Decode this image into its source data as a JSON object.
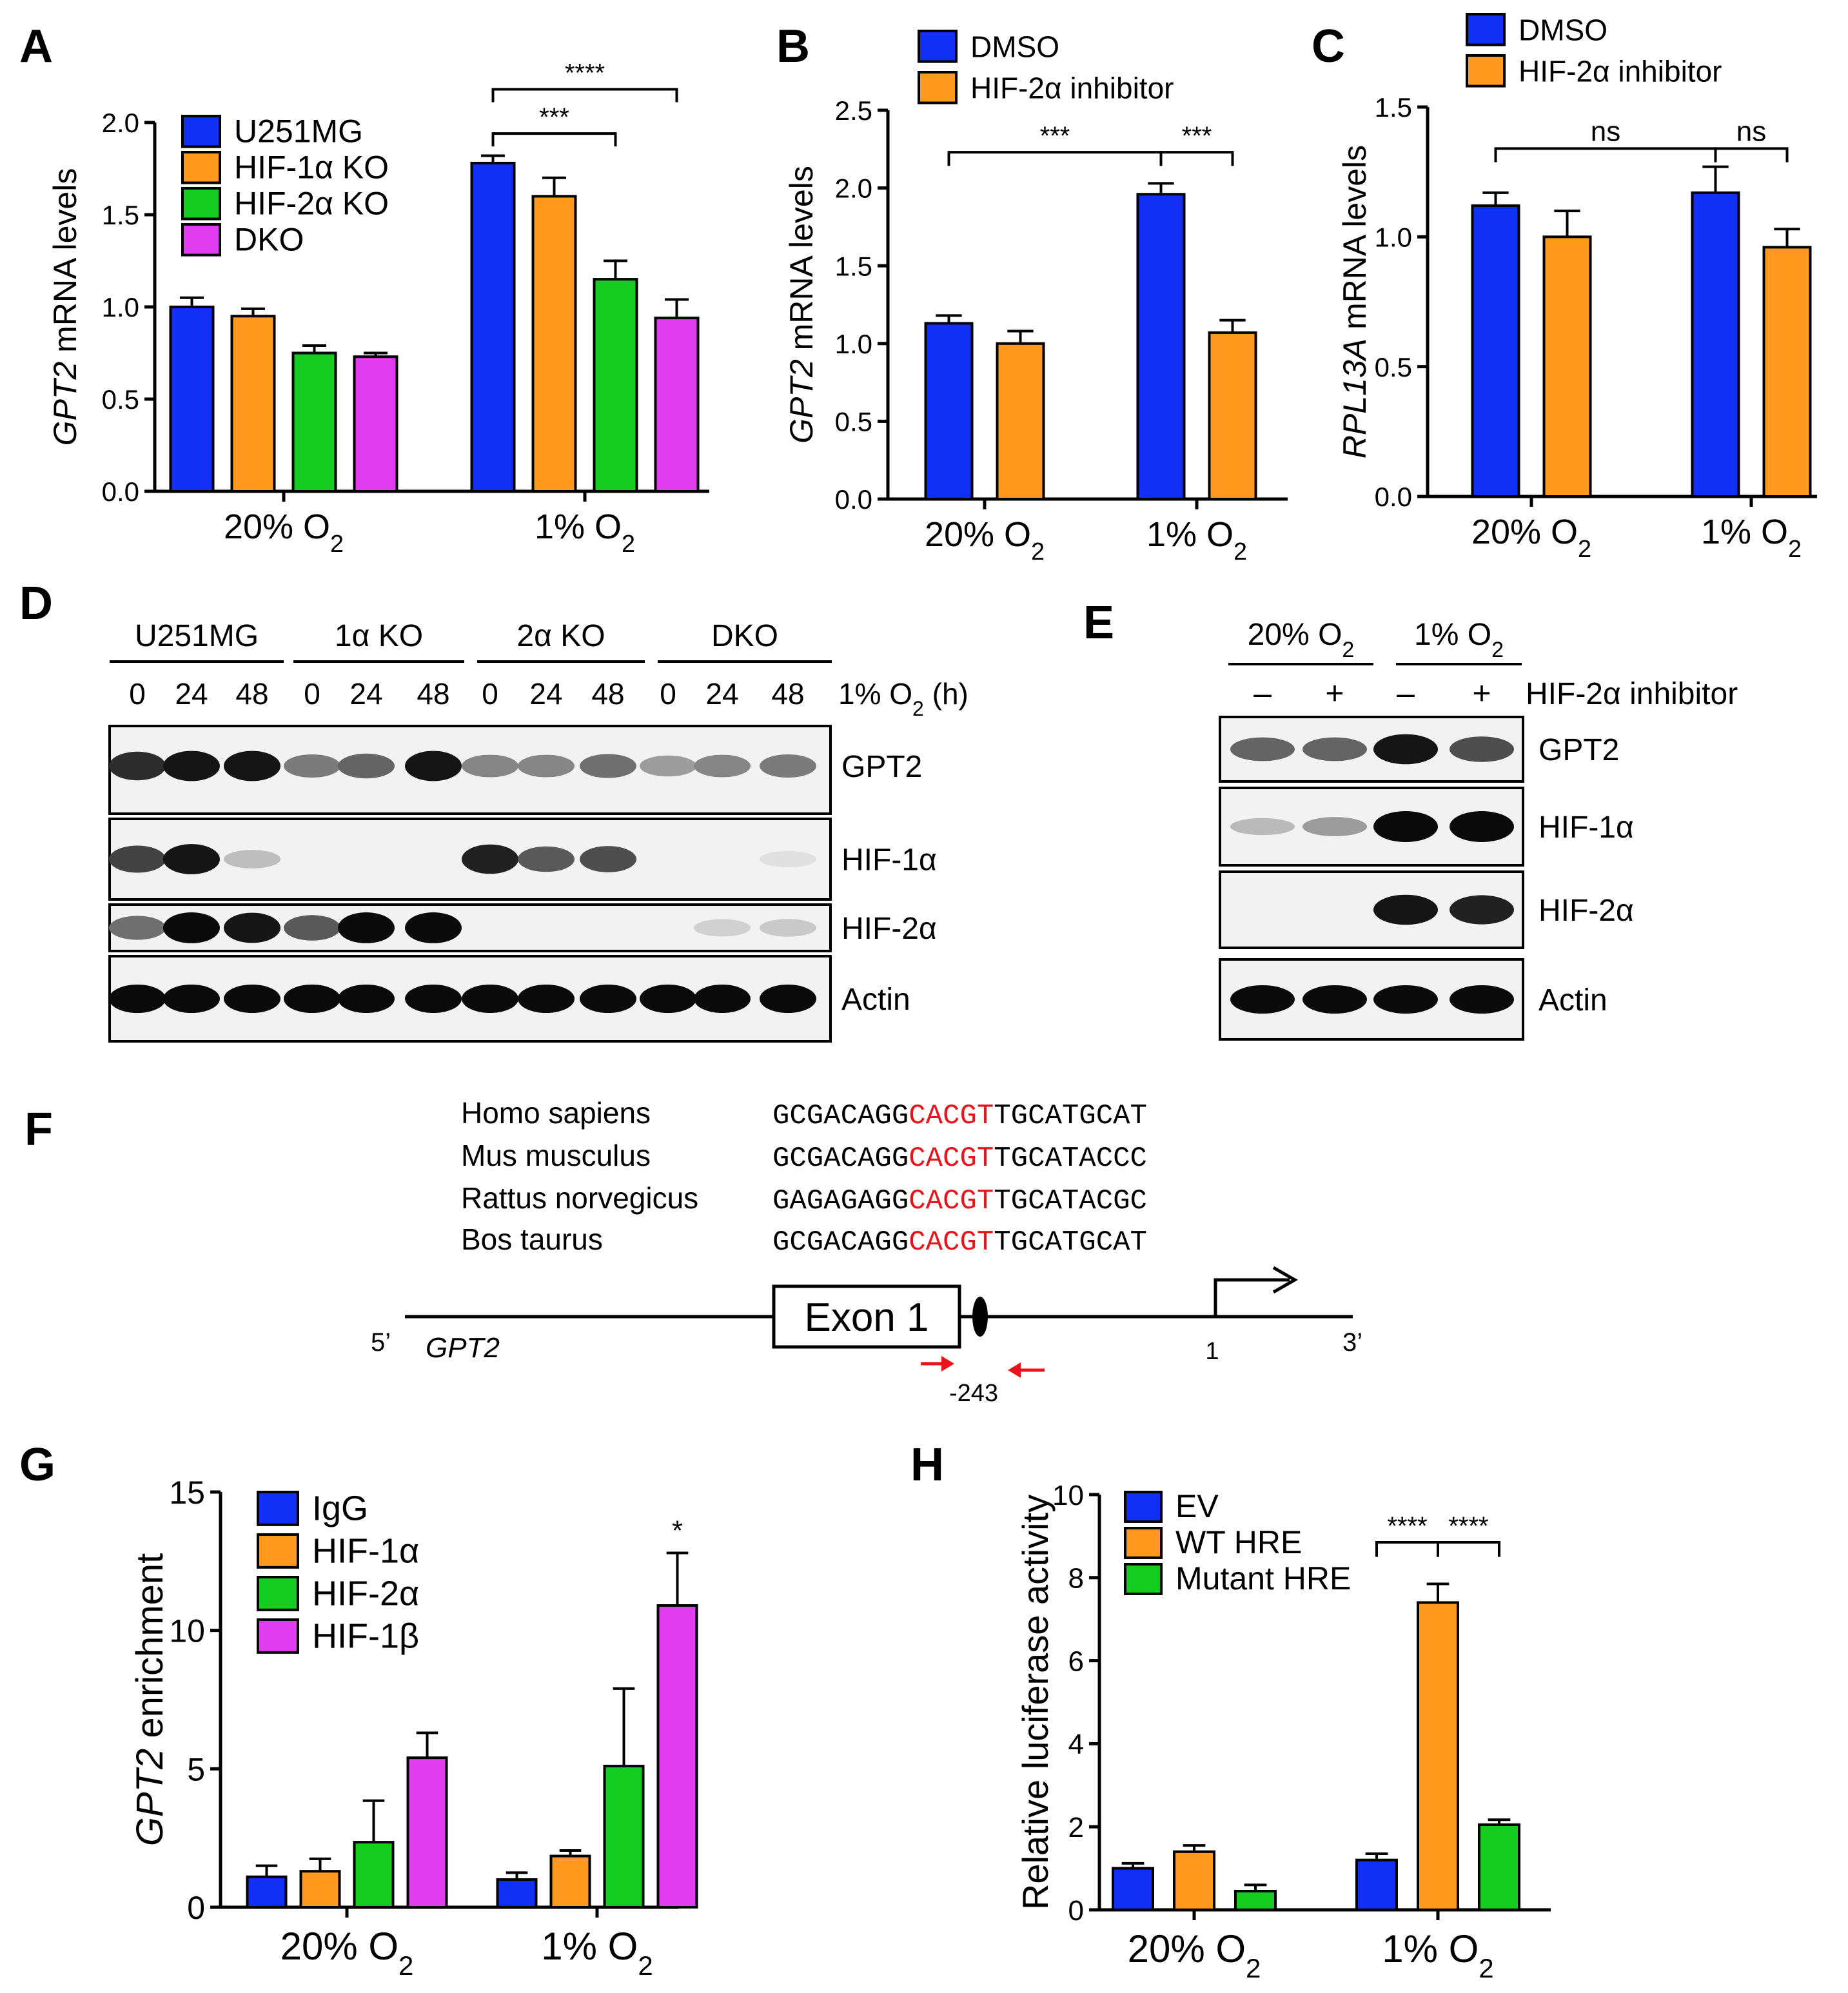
{
  "colors": {
    "blue": "#1230F5",
    "orange": "#FF9A1E",
    "green": "#14CC1F",
    "magenta": "#E23CF0",
    "red": "#E8141C",
    "black": "#000000"
  },
  "panels": {
    "A": {
      "label": "A"
    },
    "B": {
      "label": "B"
    },
    "C": {
      "label": "C"
    },
    "D": {
      "label": "D"
    },
    "E": {
      "label": "E"
    },
    "F": {
      "label": "F"
    },
    "G": {
      "label": "G"
    },
    "H": {
      "label": "H"
    }
  },
  "chart_data": [
    {
      "id": "A",
      "type": "bar",
      "ylabel_italic": "GPT2",
      "ylabel_rest": " mRNA levels",
      "ylim": [
        0,
        2.0
      ],
      "yticks": [
        "0.0",
        "0.5",
        "1.0",
        "1.5",
        "2.0"
      ],
      "groups": [
        {
          "label": "20% O",
          "sub": "2"
        },
        {
          "label": "1% O",
          "sub": "2"
        }
      ],
      "legend_position": "top-left",
      "series": [
        {
          "name": "U251MG",
          "color": "blue",
          "values": [
            1.0,
            1.78
          ],
          "errors": [
            0.05,
            0.04
          ]
        },
        {
          "name": "HIF-1α KO",
          "color": "orange",
          "values": [
            0.95,
            1.6
          ],
          "errors": [
            0.04,
            0.1
          ]
        },
        {
          "name": "HIF-2α KO",
          "color": "green",
          "values": [
            0.75,
            1.15
          ],
          "errors": [
            0.04,
            0.1
          ]
        },
        {
          "name": "DKO",
          "color": "magenta",
          "values": [
            0.73,
            0.94
          ],
          "errors": [
            0.02,
            0.1
          ]
        }
      ],
      "significance": [
        {
          "text": "****",
          "from": [
            1,
            0
          ],
          "to": [
            1,
            3
          ],
          "level": 2.18
        },
        {
          "text": "***",
          "from": [
            1,
            0
          ],
          "to": [
            1,
            2
          ],
          "level": 1.94
        }
      ]
    },
    {
      "id": "B",
      "type": "bar",
      "ylabel_italic": "GPT2",
      "ylabel_rest": " mRNA levels",
      "ylim": [
        0,
        2.5
      ],
      "yticks": [
        "0.0",
        "0.5",
        "1.0",
        "1.5",
        "2.0",
        "2.5"
      ],
      "groups": [
        {
          "label": "20% O",
          "sub": "2"
        },
        {
          "label": "1% O",
          "sub": "2"
        }
      ],
      "legend_position": "top-left",
      "series": [
        {
          "name": "DMSO",
          "color": "blue",
          "values": [
            1.13,
            1.96
          ],
          "errors": [
            0.05,
            0.07
          ]
        },
        {
          "name": "HIF-2α inhibitor",
          "color": "orange",
          "values": [
            1.0,
            1.07
          ],
          "errors": [
            0.08,
            0.08
          ]
        }
      ],
      "significance": [
        {
          "text": "***",
          "from": [
            0,
            0
          ],
          "to": [
            1,
            0
          ],
          "level": 2.23
        },
        {
          "text": "***",
          "from": [
            1,
            0
          ],
          "to": [
            1,
            1
          ],
          "level": 2.23
        }
      ]
    },
    {
      "id": "C",
      "type": "bar",
      "ylabel_italic": "RPL13A",
      "ylabel_rest": " mRNA levels",
      "ylim": [
        0,
        1.5
      ],
      "yticks": [
        "0.0",
        "0.5",
        "1.0",
        "1.5"
      ],
      "groups": [
        {
          "label": "20% O",
          "sub": "2"
        },
        {
          "label": "1% O",
          "sub": "2"
        }
      ],
      "legend_position": "top-left",
      "series": [
        {
          "name": "DMSO",
          "color": "blue",
          "values": [
            1.12,
            1.17
          ],
          "errors": [
            0.05,
            0.1
          ]
        },
        {
          "name": "HIF-2α inhibitor",
          "color": "orange",
          "values": [
            1.0,
            0.96
          ],
          "errors": [
            0.1,
            0.07
          ]
        }
      ],
      "significance": [
        {
          "text": "ns",
          "from": [
            0,
            0
          ],
          "to": [
            1,
            0
          ],
          "level": 1.34
        },
        {
          "text": "ns",
          "from": [
            1,
            0
          ],
          "to": [
            1,
            1
          ],
          "level": 1.34
        }
      ]
    },
    {
      "id": "G",
      "type": "bar",
      "ylabel_italic": "GPT2",
      "ylabel_rest": " enrichment",
      "ylim": [
        0,
        15
      ],
      "yticks": [
        "0",
        "5",
        "10",
        "15"
      ],
      "groups": [
        {
          "label": "20% O",
          "sub": "2"
        },
        {
          "label": "1% O",
          "sub": "2"
        }
      ],
      "legend_position": "top-left",
      "series": [
        {
          "name": "IgG",
          "color": "blue",
          "values": [
            1.1,
            1.0
          ],
          "errors": [
            0.4,
            0.25
          ]
        },
        {
          "name": "HIF-1α",
          "color": "orange",
          "values": [
            1.3,
            1.85
          ],
          "errors": [
            0.45,
            0.2
          ]
        },
        {
          "name": "HIF-2α",
          "color": "green",
          "values": [
            2.35,
            5.1
          ],
          "errors": [
            1.5,
            2.8
          ]
        },
        {
          "name": "HIF-1β",
          "color": "magenta",
          "values": [
            5.4,
            10.9
          ],
          "errors": [
            0.9,
            1.9
          ]
        }
      ],
      "stars": [
        {
          "text": "*",
          "at": [
            1,
            3
          ]
        }
      ]
    },
    {
      "id": "H",
      "type": "bar",
      "ylabel_italic": "",
      "ylabel_rest": "Relative luciferase activity",
      "ylim": [
        0,
        10
      ],
      "yticks": [
        "0",
        "2",
        "4",
        "6",
        "8",
        "10"
      ],
      "groups": [
        {
          "label": "20% O",
          "sub": "2"
        },
        {
          "label": "1% O",
          "sub": "2"
        }
      ],
      "legend_position": "top-left",
      "series": [
        {
          "name": "EV",
          "color": "blue",
          "values": [
            1.0,
            1.2
          ],
          "errors": [
            0.12,
            0.15
          ]
        },
        {
          "name": "WT HRE",
          "color": "orange",
          "values": [
            1.4,
            7.4
          ],
          "errors": [
            0.15,
            0.45
          ]
        },
        {
          "name": "Mutant HRE",
          "color": "green",
          "values": [
            0.45,
            2.05
          ],
          "errors": [
            0.15,
            0.12
          ]
        }
      ],
      "significance": [
        {
          "text": "****",
          "from": [
            1,
            0
          ],
          "to": [
            1,
            1
          ],
          "level": 8.85
        },
        {
          "text": "****",
          "from": [
            1,
            1
          ],
          "to": [
            1,
            2
          ],
          "level": 8.85
        }
      ]
    }
  ],
  "blotD": {
    "groups": [
      "U251MG",
      "1α KO",
      "2α KO",
      "DKO"
    ],
    "timepoints": [
      "0",
      "24",
      "48",
      "0",
      "24",
      "48",
      "0",
      "24",
      "48",
      "0",
      "24",
      "48"
    ],
    "condition_label": "1% O",
    "condition_sub": "2",
    "condition_unit": " (h)",
    "blots": [
      {
        "name": "GPT2",
        "intensity": [
          0.85,
          0.95,
          0.95,
          0.5,
          0.6,
          0.95,
          0.45,
          0.45,
          0.55,
          0.35,
          0.45,
          0.5
        ]
      },
      {
        "name": "HIF-1α",
        "intensity": [
          0.75,
          0.95,
          0.2,
          0,
          0,
          0,
          0.9,
          0.65,
          0.7,
          0,
          0,
          0.05
        ]
      },
      {
        "name": "HIF-2α",
        "intensity": [
          0.55,
          1.0,
          0.95,
          0.65,
          1.0,
          1.0,
          0,
          0,
          0,
          0,
          0.12,
          0.15
        ]
      },
      {
        "name": "Actin",
        "intensity": [
          1.0,
          1.0,
          1.0,
          1.0,
          1.0,
          1.0,
          1.0,
          1.0,
          1.0,
          1.0,
          1.0,
          1.0
        ]
      }
    ]
  },
  "blotE": {
    "groups": [
      {
        "label": "20% O",
        "sub": "2"
      },
      {
        "label": "1% O",
        "sub": "2"
      }
    ],
    "treatments": [
      "–",
      "+",
      "–",
      "+"
    ],
    "treatment_label": "HIF-2α inhibitor",
    "blots": [
      {
        "name": "GPT2",
        "intensity": [
          0.6,
          0.6,
          0.95,
          0.7
        ]
      },
      {
        "name": "HIF-1α",
        "intensity": [
          0.22,
          0.35,
          1.0,
          1.0
        ]
      },
      {
        "name": "HIF-2α",
        "intensity": [
          0,
          0,
          0.95,
          0.9
        ]
      },
      {
        "name": "Actin",
        "intensity": [
          1.0,
          1.0,
          1.0,
          1.0
        ]
      }
    ]
  },
  "panelF": {
    "alignment": [
      {
        "species": "Homo sapiens",
        "pre": "GCGACAGG",
        "hre": "CACGT",
        "post": "TGCATGCAT"
      },
      {
        "species": "Mus musculus",
        "pre": "GCGACAGG",
        "hre": "CACGT",
        "post": "TGCATACCC"
      },
      {
        "species": "Rattus norvegicus",
        "pre": "GAGAGAGG",
        "hre": "CACGT",
        "post": "TGCATACGC"
      },
      {
        "species": "Bos taurus",
        "pre": "GCGACAGG",
        "hre": "CACGT",
        "post": "TGCATGCAT"
      }
    ],
    "gene_label": "GPT2",
    "five_prime": "5’",
    "three_prime": "3’",
    "exon_label": "Exon 1",
    "tss_label": "1",
    "hre_position": "-243"
  }
}
